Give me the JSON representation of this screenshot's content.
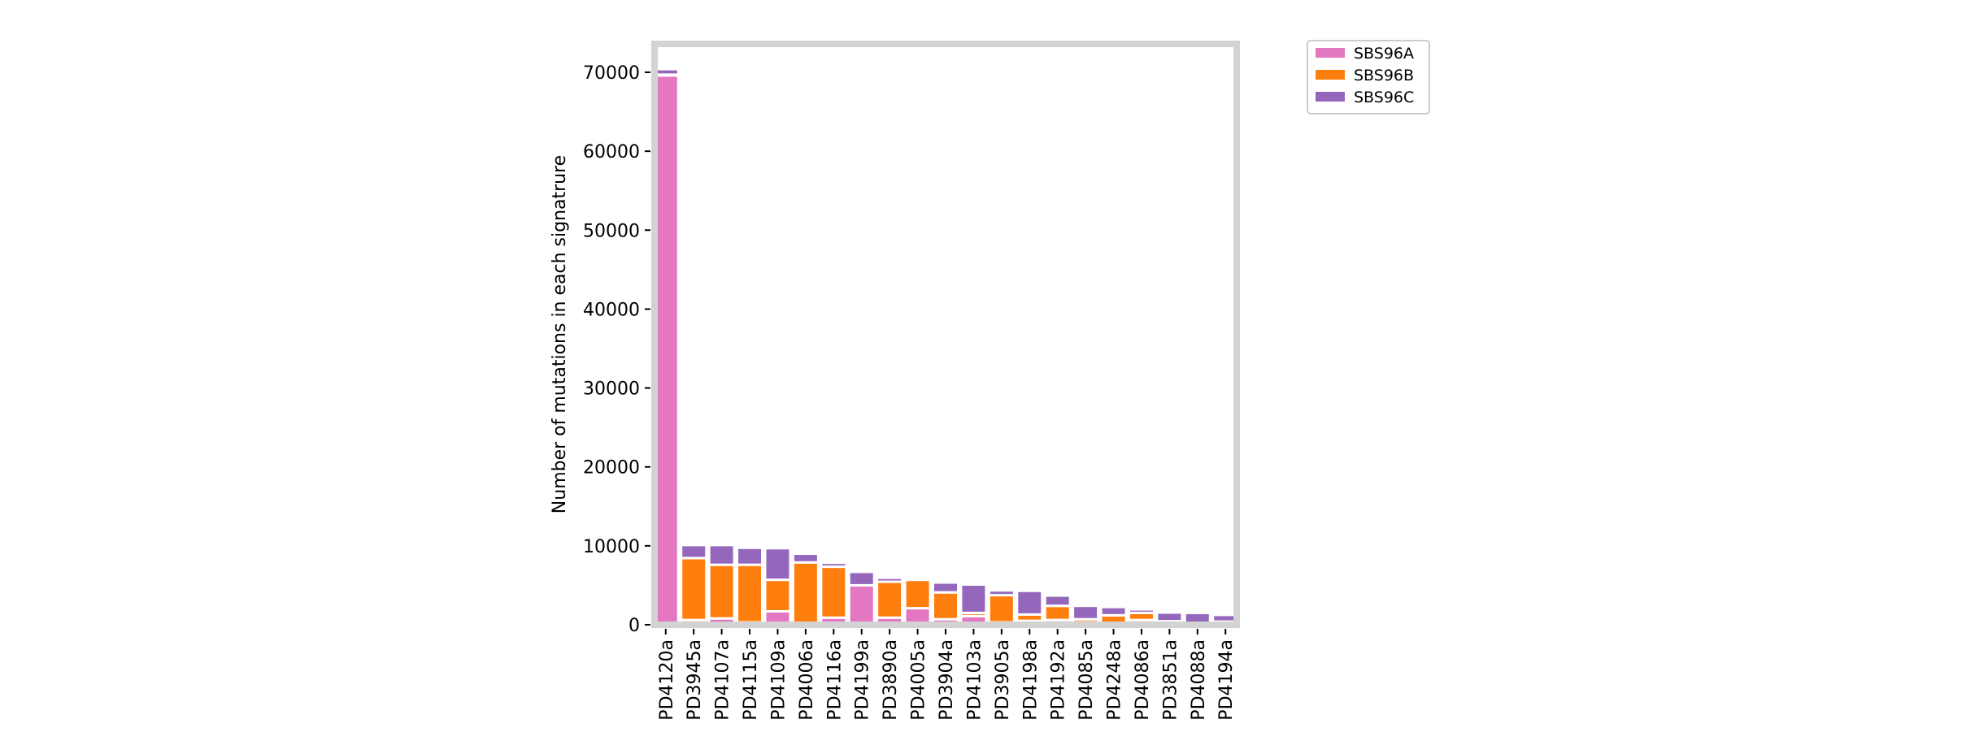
{
  "chart_data": {
    "type": "bar",
    "stacked": true,
    "title": "",
    "xlabel": "",
    "ylabel": "Number of mutations in each signatrure",
    "ylim": [
      0,
      73600
    ],
    "yticks": [
      0,
      10000,
      20000,
      30000,
      40000,
      50000,
      60000,
      70000
    ],
    "grid": false,
    "legend_position": "outside-top-right",
    "frame_color": "#d3d3d3",
    "categories": [
      "PD4120a",
      "PD3945a",
      "PD4107a",
      "PD4115a",
      "PD4109a",
      "PD4006a",
      "PD4116a",
      "PD4199a",
      "PD3890a",
      "PD4005a",
      "PD3904a",
      "PD4103a",
      "PD3905a",
      "PD4198a",
      "PD4192a",
      "PD4085a",
      "PD4248a",
      "PD4086a",
      "PD3851a",
      "PD4088a",
      "PD4194a"
    ],
    "series": [
      {
        "name": "SBS96A",
        "color": "#e377c2",
        "values": [
          69600,
          600,
          800,
          300,
          1700,
          200,
          900,
          5000,
          900,
          2100,
          700,
          1100,
          300,
          500,
          600,
          300,
          200,
          600,
          200,
          100,
          200
        ]
      },
      {
        "name": "SBS96B",
        "color": "#ff7f0e",
        "values": [
          100,
          7850,
          6800,
          7300,
          4000,
          7700,
          6450,
          0,
          4550,
          3600,
          3400,
          400,
          3450,
          800,
          1800,
          400,
          1000,
          900,
          250,
          100,
          200
        ]
      },
      {
        "name": "SBS96C",
        "color": "#9467bd",
        "values": [
          700,
          1650,
          2500,
          2150,
          4000,
          1100,
          500,
          1700,
          500,
          200,
          1250,
          3600,
          600,
          3000,
          1300,
          1700,
          1050,
          450,
          1100,
          1300,
          850
        ]
      }
    ]
  }
}
